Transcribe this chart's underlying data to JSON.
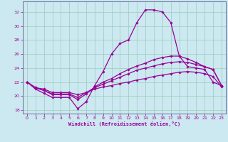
{
  "xlabel": "Windchill (Refroidissement éolien,°C)",
  "bg_color": "#cce8f0",
  "grid_color": "#99ccbb",
  "line_color": "#990099",
  "spine_color": "#666699",
  "ylim": [
    17.5,
    33.5
  ],
  "xlim": [
    -0.5,
    23.5
  ],
  "yticks": [
    18,
    20,
    22,
    24,
    26,
    28,
    30,
    32
  ],
  "xticks": [
    0,
    1,
    2,
    3,
    4,
    5,
    6,
    7,
    8,
    9,
    10,
    11,
    12,
    13,
    14,
    15,
    16,
    17,
    18,
    19,
    20,
    21,
    22,
    23
  ],
  "series": [
    [
      22.0,
      21.0,
      20.4,
      19.8,
      19.8,
      19.8,
      18.2,
      19.2,
      21.5,
      23.5,
      26.0,
      27.5,
      28.0,
      30.5,
      32.3,
      32.3,
      32.0,
      30.5,
      25.7,
      24.2,
      24.0,
      23.8,
      22.0,
      21.5
    ],
    [
      22.0,
      21.2,
      20.8,
      20.2,
      20.2,
      20.2,
      19.5,
      20.3,
      21.3,
      22.0,
      22.5,
      23.2,
      23.8,
      24.3,
      24.7,
      25.2,
      25.5,
      25.7,
      25.7,
      25.3,
      24.8,
      24.2,
      23.8,
      21.5
    ],
    [
      22.0,
      21.2,
      20.8,
      20.3,
      20.3,
      20.3,
      19.8,
      20.5,
      21.2,
      21.7,
      22.2,
      22.7,
      23.2,
      23.7,
      24.0,
      24.3,
      24.6,
      24.8,
      24.9,
      24.8,
      24.5,
      24.2,
      23.8,
      21.5
    ],
    [
      22.0,
      21.2,
      21.0,
      20.5,
      20.5,
      20.5,
      20.2,
      20.5,
      21.0,
      21.3,
      21.5,
      21.8,
      22.0,
      22.3,
      22.5,
      22.8,
      23.0,
      23.2,
      23.4,
      23.5,
      23.4,
      23.2,
      22.8,
      21.3
    ]
  ]
}
